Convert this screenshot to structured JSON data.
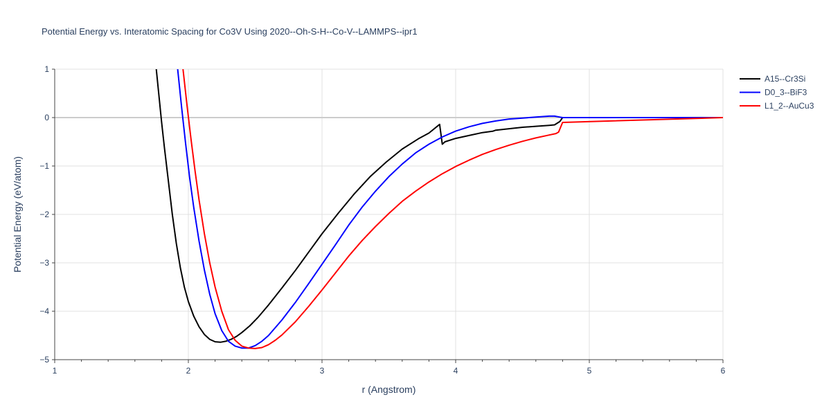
{
  "chart_data": {
    "type": "line",
    "title": "Potential Energy vs. Interatomic Spacing for Co3V Using 2020--Oh-S-H--Co-V--LAMMPS--ipr1",
    "xlabel": "r (Angstrom)",
    "ylabel": "Potential Energy (eV/atom)",
    "xlim": [
      1,
      6
    ],
    "ylim": [
      -5,
      1
    ],
    "xticks": [
      1,
      2,
      3,
      4,
      5,
      6
    ],
    "xtick_labels": [
      "1",
      "2",
      "3",
      "4",
      "5",
      "6"
    ],
    "yticks": [
      1,
      0,
      -1,
      -2,
      -3,
      -4,
      -5
    ],
    "ytick_labels": [
      "1",
      "0",
      "−1",
      "−2",
      "−3",
      "−4",
      "−5"
    ],
    "grid": true,
    "legend_position": "top-right",
    "series": [
      {
        "name": "A15--Cr3Si",
        "color": "#000000",
        "x": [
          1.76,
          1.78,
          1.8,
          1.82,
          1.85,
          1.88,
          1.91,
          1.94,
          1.97,
          2.0,
          2.04,
          2.08,
          2.12,
          2.16,
          2.2,
          2.24,
          2.28,
          2.32,
          2.36,
          2.4,
          2.46,
          2.52,
          2.6,
          2.7,
          2.8,
          2.9,
          3.0,
          3.12,
          3.24,
          3.36,
          3.48,
          3.6,
          3.72,
          3.8,
          3.88,
          3.9,
          3.92,
          4.0,
          4.1,
          4.2,
          4.28,
          4.3,
          4.4,
          4.5,
          4.6,
          4.7,
          4.74,
          4.78,
          4.8,
          6.0
        ],
        "y": [
          1.0,
          0.45,
          -0.1,
          -0.6,
          -1.3,
          -2.0,
          -2.6,
          -3.1,
          -3.5,
          -3.8,
          -4.1,
          -4.32,
          -4.48,
          -4.58,
          -4.63,
          -4.64,
          -4.62,
          -4.58,
          -4.52,
          -4.44,
          -4.3,
          -4.13,
          -3.87,
          -3.52,
          -3.16,
          -2.78,
          -2.4,
          -1.98,
          -1.58,
          -1.22,
          -0.92,
          -0.65,
          -0.44,
          -0.32,
          -0.14,
          -0.55,
          -0.5,
          -0.43,
          -0.37,
          -0.31,
          -0.28,
          -0.26,
          -0.23,
          -0.2,
          -0.18,
          -0.16,
          -0.15,
          -0.08,
          0.0,
          0.0
        ]
      },
      {
        "name": "D0_3--BiF3",
        "color": "#0000ff",
        "x": [
          1.92,
          1.95,
          1.98,
          2.01,
          2.04,
          2.08,
          2.12,
          2.16,
          2.2,
          2.25,
          2.3,
          2.35,
          2.4,
          2.45,
          2.5,
          2.55,
          2.6,
          2.7,
          2.8,
          2.9,
          3.0,
          3.1,
          3.2,
          3.3,
          3.4,
          3.5,
          3.6,
          3.7,
          3.8,
          3.9,
          4.0,
          4.1,
          4.2,
          4.3,
          4.4,
          4.5,
          4.6,
          4.7,
          4.74,
          4.78,
          4.8,
          6.0
        ],
        "y": [
          1.0,
          0.2,
          -0.55,
          -1.25,
          -1.85,
          -2.55,
          -3.15,
          -3.65,
          -4.05,
          -4.4,
          -4.62,
          -4.72,
          -4.76,
          -4.76,
          -4.71,
          -4.62,
          -4.5,
          -4.18,
          -3.82,
          -3.43,
          -3.03,
          -2.63,
          -2.22,
          -1.85,
          -1.52,
          -1.22,
          -0.96,
          -0.73,
          -0.55,
          -0.4,
          -0.28,
          -0.19,
          -0.12,
          -0.07,
          -0.03,
          -0.01,
          0.01,
          0.03,
          0.03,
          0.01,
          0.0,
          0.0
        ]
      },
      {
        "name": "L1_2--AuCu3",
        "color": "#ff0000",
        "x": [
          1.96,
          1.99,
          2.02,
          2.05,
          2.08,
          2.12,
          2.16,
          2.2,
          2.25,
          2.3,
          2.35,
          2.4,
          2.45,
          2.5,
          2.55,
          2.6,
          2.65,
          2.7,
          2.8,
          2.9,
          3.0,
          3.1,
          3.2,
          3.3,
          3.4,
          3.5,
          3.6,
          3.7,
          3.8,
          3.9,
          4.0,
          4.1,
          4.2,
          4.3,
          4.4,
          4.5,
          4.6,
          4.7,
          4.75,
          4.77,
          4.8,
          6.0
        ],
        "y": [
          1.0,
          0.25,
          -0.45,
          -1.1,
          -1.7,
          -2.4,
          -3.0,
          -3.5,
          -4.0,
          -4.38,
          -4.6,
          -4.72,
          -4.76,
          -4.77,
          -4.75,
          -4.69,
          -4.6,
          -4.49,
          -4.22,
          -3.9,
          -3.56,
          -3.21,
          -2.86,
          -2.54,
          -2.25,
          -1.98,
          -1.73,
          -1.52,
          -1.33,
          -1.16,
          -1.01,
          -0.88,
          -0.76,
          -0.66,
          -0.57,
          -0.49,
          -0.42,
          -0.36,
          -0.33,
          -0.3,
          -0.1,
          0.0
        ]
      }
    ]
  }
}
